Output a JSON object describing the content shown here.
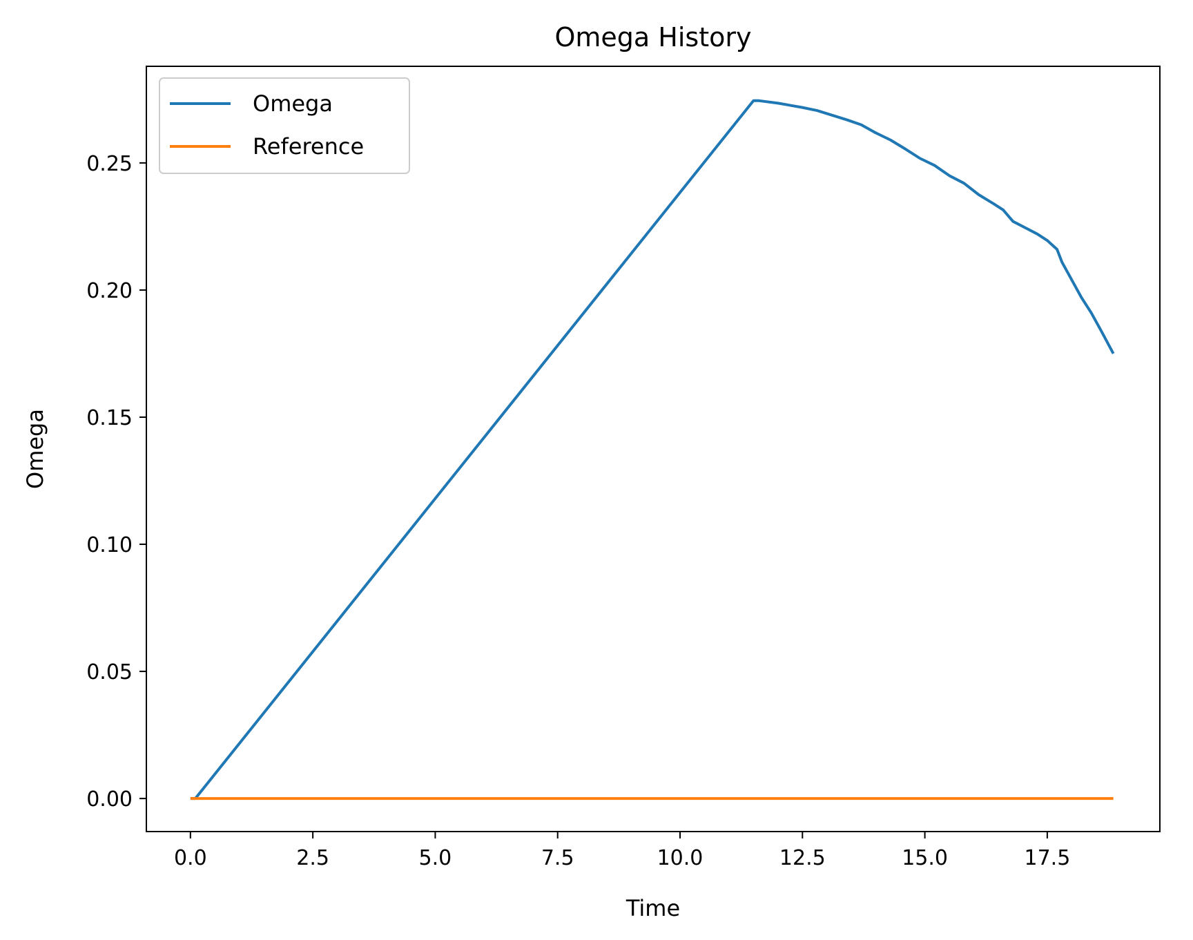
{
  "chart_data": {
    "type": "line",
    "title": "Omega History",
    "xlabel": "Time",
    "ylabel": "Omega",
    "xlim": [
      -0.9,
      19.8
    ],
    "ylim": [
      -0.013,
      0.288
    ],
    "xticks": [
      0.0,
      2.5,
      5.0,
      7.5,
      10.0,
      12.5,
      15.0,
      17.5
    ],
    "xtick_labels": [
      "0.0",
      "2.5",
      "5.0",
      "7.5",
      "10.0",
      "12.5",
      "15.0",
      "17.5"
    ],
    "yticks": [
      0.0,
      0.05,
      0.1,
      0.15,
      0.2,
      0.25
    ],
    "ytick_labels": [
      "0.00",
      "0.05",
      "0.10",
      "0.15",
      "0.20",
      "0.25"
    ],
    "grid": false,
    "legend_position": "upper-left",
    "series": [
      {
        "name": "Omega",
        "color": "#1f77b4",
        "x": [
          0.0,
          0.1,
          11.5,
          11.6,
          12.0,
          12.5,
          12.8,
          13.1,
          13.4,
          13.7,
          14.0,
          14.3,
          14.6,
          14.9,
          15.2,
          15.5,
          15.8,
          16.1,
          16.4,
          16.6,
          16.8,
          17.0,
          17.3,
          17.5,
          17.7,
          17.8,
          18.0,
          18.2,
          18.4,
          18.6,
          18.85
        ],
        "y": [
          0.0,
          0.0,
          0.2745,
          0.2745,
          0.2735,
          0.2718,
          0.2706,
          0.2688,
          0.267,
          0.265,
          0.2618,
          0.259,
          0.2555,
          0.2518,
          0.249,
          0.245,
          0.242,
          0.2375,
          0.234,
          0.2315,
          0.227,
          0.225,
          0.222,
          0.2195,
          0.216,
          0.211,
          0.204,
          0.197,
          0.191,
          0.184,
          0.175
        ]
      },
      {
        "name": "Reference",
        "color": "#ff7f0e",
        "x": [
          0.0,
          18.85
        ],
        "y": [
          0.0,
          0.0
        ]
      }
    ]
  }
}
